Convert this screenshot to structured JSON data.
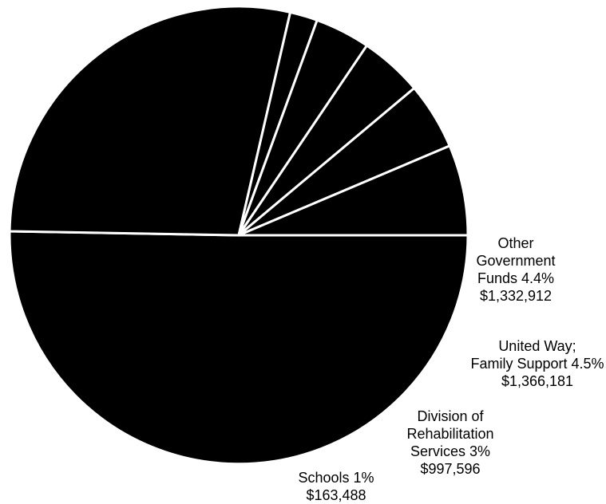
{
  "chart_data": {
    "type": "pie",
    "colors": {
      "slice_fill": "#000000",
      "separator": "#ffffff"
    },
    "slices": [
      {
        "key": "large-upper",
        "name": "",
        "start_deg": 0,
        "end_deg": 181,
        "label": null
      },
      {
        "key": "large-lower",
        "name": "",
        "start_deg": 181,
        "end_deg": 283,
        "label": null
      },
      {
        "key": "schools",
        "name": "Schools",
        "start_deg": 283,
        "end_deg": 290,
        "label": {
          "lines": [
            "Schools 1%",
            "$163,488"
          ],
          "percent": 1,
          "amount": 163488
        }
      },
      {
        "key": "unlabeled-small",
        "name": "",
        "start_deg": 290,
        "end_deg": 304,
        "label": null
      },
      {
        "key": "rehabilitation",
        "name": "Division of Rehabilitation Services",
        "start_deg": 304,
        "end_deg": 320,
        "label": {
          "lines": [
            "Division of",
            "Rehabilitation",
            "Services 3%",
            "$997,596"
          ],
          "percent": 3,
          "amount": 997596
        }
      },
      {
        "key": "united-way",
        "name": "United Way; Family Support",
        "start_deg": 320,
        "end_deg": 337,
        "label": {
          "lines": [
            "United Way;",
            "Family Support 4.5%",
            "$1,366,181"
          ],
          "percent": 4.5,
          "amount": 1366181
        }
      },
      {
        "key": "other-government",
        "name": "Other Government Funds",
        "start_deg": 337,
        "end_deg": 360,
        "label": {
          "lines": [
            "Other",
            "Government",
            "Funds 4.4%",
            "$1,332,912"
          ],
          "percent": 4.4,
          "amount": 1332912
        }
      }
    ]
  }
}
